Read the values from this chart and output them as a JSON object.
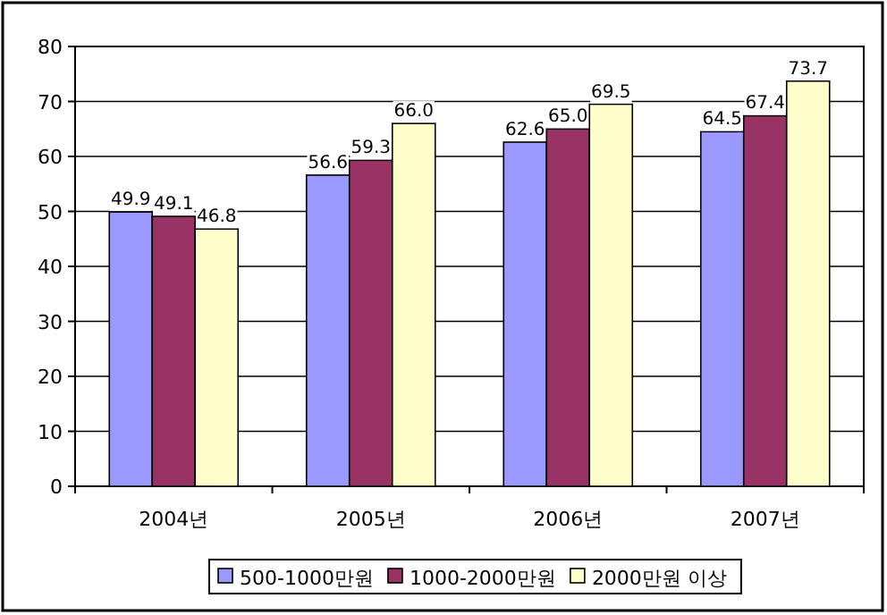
{
  "chart_data": {
    "type": "bar",
    "categories": [
      "2004년",
      "2005년",
      "2006년",
      "2007년"
    ],
    "series": [
      {
        "name": "500-1000만원",
        "color": "#9999ff",
        "values": [
          49.9,
          56.6,
          62.6,
          64.5
        ],
        "value_labels": [
          "49.9",
          "56.6",
          "62.6",
          "64.5"
        ]
      },
      {
        "name": "1000-2000만원",
        "color": "#993366",
        "values": [
          49.1,
          59.3,
          65.0,
          67.4
        ],
        "value_labels": [
          "49.1",
          "59.3",
          "65.0",
          "67.4"
        ]
      },
      {
        "name": "2000만원 이상",
        "color": "#ffffcc",
        "values": [
          46.8,
          66.0,
          69.5,
          73.7
        ],
        "value_labels": [
          "46.8",
          "66.0",
          "69.5",
          "73.7"
        ]
      }
    ],
    "ylim": [
      0,
      80
    ],
    "yticks": [
      0,
      10,
      20,
      30,
      40,
      50,
      60,
      70,
      80
    ],
    "grid": "y",
    "legend": "bottom"
  }
}
